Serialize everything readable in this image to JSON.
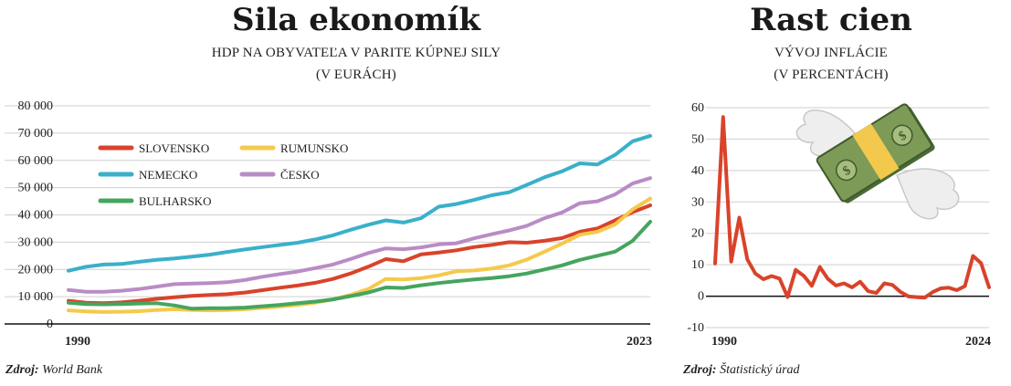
{
  "left": {
    "title": "Sila ekonomík",
    "subtitle_line1": "HDP NA OBYVATEĽA V PARITE KÚPNEJ SILY",
    "subtitle_line2": "(V EURÁCH)",
    "source_label": "Zdroj:",
    "source_value": "World Bank",
    "colors": {
      "Slovensko": "#d9432b",
      "Rumunsko": "#f5c94a",
      "Nemecko": "#3ab0c9",
      "Česko": "#b98cc6",
      "Bulharsko": "#45a55f"
    }
  },
  "right": {
    "title": "Rast cien",
    "subtitle_line1": "VÝVOJ INFLÁCIE",
    "subtitle_line2": "(V PERCENTÁCH)",
    "source_label": "Zdroj:",
    "source_value": "Štatistický úrad",
    "illustration": "flying-money-icon"
  },
  "chart_data": [
    {
      "type": "line",
      "title": "Sila ekonomík",
      "subtitle": "HDP NA OBYVATEĽA V PARITE KÚPNEJ SILY (V EURÁCH)",
      "x": [
        1990,
        1991,
        1992,
        1993,
        1994,
        1995,
        1996,
        1997,
        1998,
        1999,
        2000,
        2001,
        2002,
        2003,
        2004,
        2005,
        2006,
        2007,
        2008,
        2009,
        2010,
        2011,
        2012,
        2013,
        2014,
        2015,
        2016,
        2017,
        2018,
        2019,
        2020,
        2021,
        2022,
        2023
      ],
      "x_tick_labels": [
        "1990",
        "2023"
      ],
      "ylim": [
        0,
        80000
      ],
      "y_ticks": [
        0,
        10000,
        20000,
        30000,
        40000,
        50000,
        60000,
        70000,
        80000
      ],
      "y_tick_labels": [
        "0",
        "10 000",
        "20 000",
        "30 000",
        "40 000",
        "50 000",
        "60 000",
        "70 000",
        "80 000"
      ],
      "grid": true,
      "legend_position": "top-left",
      "series": [
        {
          "name": "SLOVENSKO",
          "color": "#d9432b",
          "values": [
            8500,
            7800,
            7600,
            7900,
            8500,
            9200,
            9800,
            10300,
            10600,
            10900,
            11500,
            12400,
            13300,
            14100,
            15100,
            16500,
            18500,
            21000,
            23800,
            23000,
            25500,
            26200,
            27000,
            28200,
            29000,
            30000,
            29800,
            30500,
            31500,
            33800,
            35000,
            38000,
            41000,
            43500
          ]
        },
        {
          "name": "RUMUNSKO",
          "color": "#f5c94a",
          "values": [
            5000,
            4600,
            4400,
            4500,
            4700,
            5100,
            5400,
            5100,
            5000,
            5100,
            5400,
            5900,
            6400,
            7000,
            7800,
            9000,
            10600,
            12800,
            16500,
            16300,
            16800,
            17800,
            19300,
            19600,
            20300,
            21500,
            23600,
            26500,
            29500,
            32700,
            33800,
            36500,
            42000,
            46000
          ]
        },
        {
          "name": "NEMECKO",
          "color": "#3ab0c9",
          "values": [
            19500,
            21000,
            21800,
            22000,
            22800,
            23500,
            24000,
            24700,
            25400,
            26400,
            27300,
            28200,
            29000,
            29800,
            31000,
            32500,
            34500,
            36400,
            38000,
            37200,
            38800,
            43000,
            44000,
            45500,
            47200,
            48300,
            51000,
            53800,
            56000,
            58900,
            58500,
            62000,
            67000,
            69000
          ]
        },
        {
          "name": "ČESKO",
          "color": "#b98cc6",
          "values": [
            12500,
            11800,
            11800,
            12200,
            12800,
            13700,
            14600,
            14800,
            15000,
            15300,
            16100,
            17300,
            18300,
            19200,
            20500,
            21800,
            23800,
            26000,
            27700,
            27400,
            28100,
            29200,
            29600,
            31400,
            32900,
            34300,
            36000,
            38800,
            40900,
            44300,
            45000,
            47500,
            51500,
            53500
          ]
        },
        {
          "name": "BULHARSKO",
          "color": "#45a55f",
          "values": [
            7800,
            7300,
            7200,
            7300,
            7500,
            7600,
            6800,
            5600,
            5800,
            5800,
            6000,
            6500,
            7000,
            7600,
            8200,
            9000,
            10200,
            11500,
            13400,
            13200,
            14200,
            15000,
            15700,
            16300,
            16800,
            17500,
            18500,
            20000,
            21500,
            23500,
            25000,
            26500,
            30500,
            37500
          ]
        }
      ]
    },
    {
      "type": "line",
      "title": "Rast cien",
      "subtitle": "VÝVOJ INFLÁCIE (V PERCENTÁCH)",
      "x": [
        1990,
        1991,
        1992,
        1993,
        1994,
        1995,
        1996,
        1997,
        1998,
        1999,
        2000,
        2001,
        2002,
        2003,
        2004,
        2005,
        2006,
        2007,
        2008,
        2009,
        2010,
        2011,
        2012,
        2013,
        2014,
        2015,
        2016,
        2017,
        2018,
        2019,
        2020,
        2021,
        2022,
        2023,
        2024
      ],
      "x_tick_labels": [
        "1990",
        "2024"
      ],
      "ylim": [
        -10,
        60
      ],
      "y_ticks": [
        -10,
        0,
        10,
        20,
        30,
        40,
        50,
        60
      ],
      "y_tick_labels": [
        "-10",
        "0",
        "10",
        "20",
        "30",
        "40",
        "50",
        "60"
      ],
      "grid": true,
      "series": [
        {
          "color": "#d9432b",
          "values": [
            10.4,
            57.0,
            11.0,
            25.0,
            11.7,
            7.2,
            5.4,
            6.4,
            5.6,
            -0.3,
            8.4,
            6.5,
            3.3,
            9.3,
            5.5,
            3.4,
            4.1,
            2.8,
            4.6,
            1.6,
            1.0,
            4.1,
            3.6,
            1.4,
            -0.1,
            -0.3,
            -0.5,
            1.3,
            2.5,
            2.7,
            1.9,
            3.2,
            12.8,
            10.5,
            2.8
          ]
        }
      ]
    }
  ]
}
